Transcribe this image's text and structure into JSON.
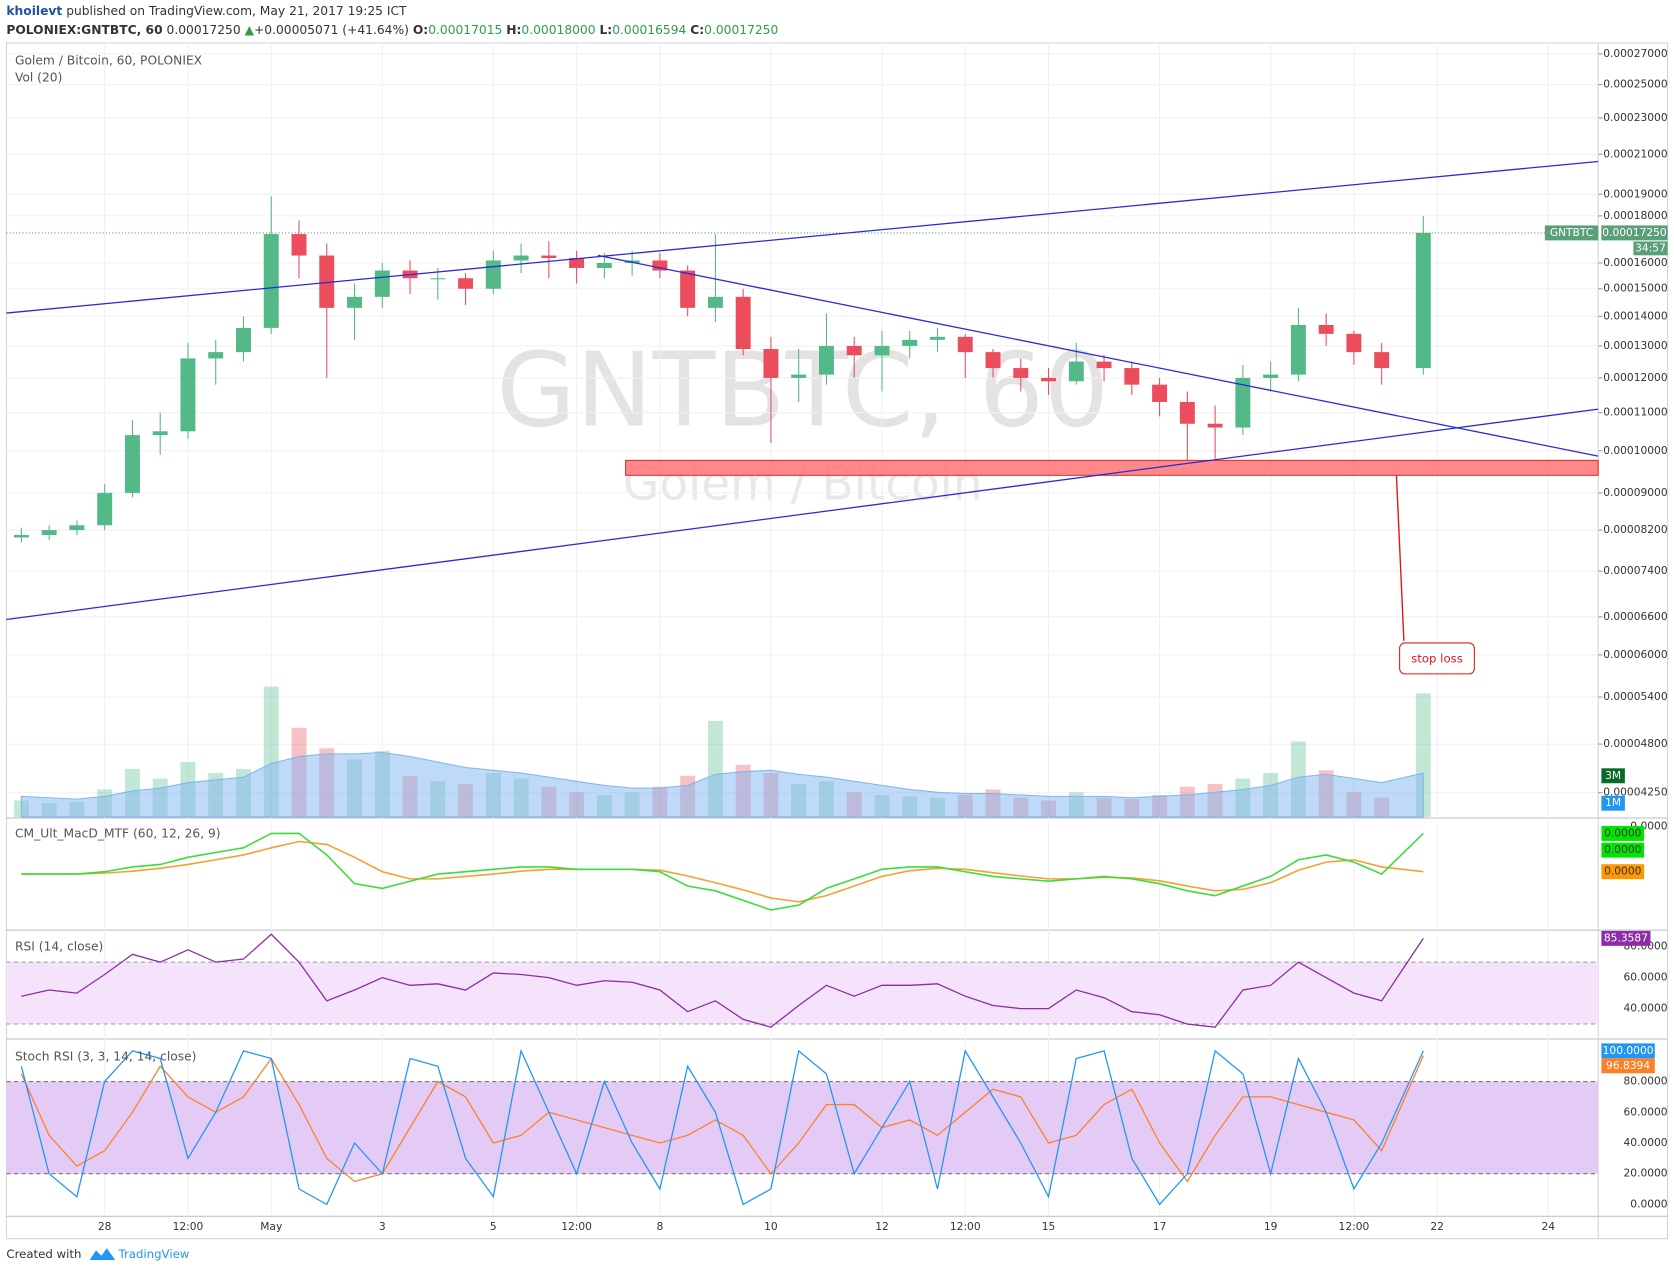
{
  "header": {
    "author": "khoilevt",
    "published": "published on TradingView.com, May 21, 2017 19:25 ICT",
    "symbol": "POLONIEX:GNTBTC, 60",
    "last": "0.00017250",
    "arrow": "▲",
    "change": "+0.00005071 (+41.64%)",
    "o_label": "O:",
    "o": "0.00017015",
    "h_label": "H:",
    "h": "0.00018000",
    "l_label": "L:",
    "l": "0.00016594",
    "c_label": "C:",
    "c": "0.00017250"
  },
  "footer": {
    "created": "Created with",
    "brand": "TradingView"
  },
  "chart_data": [
    {
      "type": "candlestick",
      "title": "Golem / Bitcoin, 60, POLONIEX",
      "watermark": "GNTBTC, 60",
      "watermark_sub": "Golem / Bitcoin",
      "annotation": "stop loss",
      "up_color": "#53b987",
      "down_color": "#eb4d5c",
      "log_scale": true,
      "grid": true,
      "x": [
        -1.5,
        -1,
        -0.5,
        0,
        0.5,
        1,
        1.5,
        2,
        2.5,
        3,
        3.5,
        4,
        4.5,
        5,
        5.5,
        6,
        6.5,
        7,
        7.5,
        8,
        8.5,
        9,
        9.5,
        10,
        10.5,
        11,
        11.5,
        12,
        12.5,
        13,
        13.5,
        14,
        14.5,
        15,
        15.5,
        16,
        16.5,
        17,
        17.5,
        18,
        18.5,
        19,
        19.5,
        20,
        20.5,
        21,
        21.5,
        22,
        22.5,
        23,
        23.75
      ],
      "open": [
        8.05e-05,
        8.1e-05,
        8.2e-05,
        8.3e-05,
        9e-05,
        0.000104,
        0.000105,
        0.000126,
        0.000128,
        0.000136,
        0.000172,
        0.000163,
        0.000143,
        0.000147,
        0.000157,
        0.000154,
        0.000154,
        0.00015,
        0.000161,
        0.000163,
        0.000162,
        0.000158,
        0.00016,
        0.000161,
        0.000157,
        0.000143,
        0.000147,
        0.000129,
        0.00012,
        0.000121,
        0.00013,
        0.000127,
        0.00013,
        0.000132,
        0.000133,
        0.000128,
        0.000123,
        0.00012,
        0.000119,
        0.000125,
        0.000123,
        0.000118,
        0.000113,
        0.000107,
        0.000106,
        0.00012,
        0.000121,
        0.000137,
        0.000134,
        0.000128,
        0.000123
      ],
      "high": [
        8.25e-05,
        8.3e-05,
        8.4e-05,
        9.2e-05,
        0.000108,
        0.00011,
        0.000131,
        0.000132,
        0.00014,
        0.000189,
        0.000178,
        0.000168,
        0.000152,
        0.00016,
        0.000161,
        0.000158,
        0.000156,
        0.000165,
        0.000168,
        0.000169,
        0.000165,
        0.000164,
        0.000165,
        0.000164,
        0.000159,
        0.000172,
        0.00015,
        0.000133,
        0.000129,
        0.000141,
        0.000133,
        0.000135,
        0.000135,
        0.000136,
        0.000134,
        0.000129,
        0.000126,
        0.000123,
        0.000131,
        0.000127,
        0.000125,
        0.00012,
        0.000116,
        0.000112,
        0.000124,
        0.000125,
        0.000143,
        0.000141,
        0.000135,
        0.000131,
        0.00018
      ],
      "low": [
        7.95e-05,
        8e-05,
        8.1e-05,
        8.2e-05,
        8.9e-05,
        9.9e-05,
        0.000103,
        0.000118,
        0.000125,
        0.000134,
        0.000154,
        0.00012,
        0.000132,
        0.000143,
        0.000148,
        0.000146,
        0.000144,
        0.000148,
        0.000156,
        0.000154,
        0.000152,
        0.000154,
        0.000155,
        0.000154,
        0.00014,
        0.000138,
        0.000127,
        0.000102,
        0.000113,
        0.000118,
        0.00012,
        0.000116,
        0.000126,
        0.000128,
        0.00012,
        0.00012,
        0.000116,
        0.000115,
        0.000118,
        0.000119,
        0.000115,
        0.000109,
        9.75e-05,
        9.8e-05,
        0.000104,
        0.000116,
        0.000119,
        0.00013,
        0.000124,
        0.000118,
        0.000121
      ],
      "close": [
        8.1e-05,
        8.2e-05,
        8.3e-05,
        9e-05,
        0.000104,
        0.000105,
        0.000126,
        0.000128,
        0.000136,
        0.000172,
        0.000163,
        0.000143,
        0.000147,
        0.000157,
        0.000154,
        0.000154,
        0.00015,
        0.000161,
        0.000163,
        0.000162,
        0.000158,
        0.00016,
        0.000161,
        0.000157,
        0.000143,
        0.000147,
        0.000129,
        0.00012,
        0.000121,
        0.00013,
        0.000127,
        0.00013,
        0.000132,
        0.000133,
        0.000128,
        0.000123,
        0.00012,
        0.000119,
        0.000125,
        0.000123,
        0.000118,
        0.000113,
        0.000107,
        0.000106,
        0.00012,
        0.000121,
        0.000137,
        0.000134,
        0.000128,
        0.000123,
        0.0001725
      ],
      "ylim": [
        4e-05,
        0.000276
      ],
      "yticks": [
        {
          "value": 0.00027,
          "label": "0.00027000"
        },
        {
          "value": 0.00025,
          "label": "0.00025000"
        },
        {
          "value": 0.00023,
          "label": "0.00023000"
        },
        {
          "value": 0.00021,
          "label": "0.00021000"
        },
        {
          "value": 0.00019,
          "label": "0.00019000"
        },
        {
          "value": 0.00018,
          "label": "0.00018000"
        },
        {
          "value": 0.00016,
          "label": "0.00016000"
        },
        {
          "value": 0.00015,
          "label": "0.00015000"
        },
        {
          "value": 0.00014,
          "label": "0.00014000"
        },
        {
          "value": 0.00013,
          "label": "0.00013000"
        },
        {
          "value": 0.00012,
          "label": "0.00012000"
        },
        {
          "value": 0.00011,
          "label": "0.00011000"
        },
        {
          "value": 0.0001,
          "label": "0.00010000"
        },
        {
          "value": 9e-05,
          "label": "0.00009000"
        },
        {
          "value": 8.2e-05,
          "label": "0.00008200"
        },
        {
          "value": 7.4e-05,
          "label": "0.00007400"
        },
        {
          "value": 6.6e-05,
          "label": "0.00006600"
        },
        {
          "value": 6e-05,
          "label": "0.00006000"
        },
        {
          "value": 5.4e-05,
          "label": "0.00005400"
        },
        {
          "value": 4.8e-05,
          "label": "0.00004800"
        },
        {
          "value": 4.25e-05,
          "label": "0.00004250"
        }
      ],
      "xlim": [
        -1.77,
        26.9
      ],
      "xticks": [
        {
          "value": 0,
          "label": "28"
        },
        {
          "value": 1.5,
          "label": "12:00"
        },
        {
          "value": 3,
          "label": "May"
        },
        {
          "value": 5,
          "label": "3"
        },
        {
          "value": 7,
          "label": "5"
        },
        {
          "value": 8.5,
          "label": "12:00"
        },
        {
          "value": 10,
          "label": "8"
        },
        {
          "value": 12,
          "label": "10"
        },
        {
          "value": 14,
          "label": "12"
        },
        {
          "value": 15.5,
          "label": "12:00"
        },
        {
          "value": 17,
          "label": "15"
        },
        {
          "value": 19,
          "label": "17"
        },
        {
          "value": 21,
          "label": "19"
        },
        {
          "value": 22.5,
          "label": "12:00"
        },
        {
          "value": 24,
          "label": "22"
        },
        {
          "value": 26,
          "label": "24"
        }
      ],
      "last_price": {
        "symbol": "GNTBTC",
        "label": "0.00017250",
        "timer": "34:57",
        "color": "#5a9e7a"
      },
      "volume": {
        "title": "Vol (20)",
        "ylim": [
          0,
          14000000
        ],
        "ma_color": "#7fb6f2",
        "values": [
          1200000,
          1000000,
          1100000,
          2000000,
          3500000,
          2800000,
          4000000,
          3200000,
          3500000,
          9500000,
          6500000,
          5000000,
          4200000,
          4800000,
          3000000,
          2600000,
          2400000,
          3200000,
          2800000,
          2200000,
          1800000,
          1600000,
          1800000,
          2200000,
          3000000,
          7000000,
          3800000,
          3200000,
          2400000,
          2600000,
          1800000,
          1600000,
          1500000,
          1400000,
          1600000,
          2000000,
          1400000,
          1200000,
          1800000,
          1400000,
          1300000,
          1600000,
          2200000,
          2400000,
          2800000,
          3200000,
          5500000,
          3400000,
          1800000,
          1400000,
          9000000
        ],
        "ma": [
          1500000,
          1400000,
          1300000,
          1500000,
          1900000,
          2100000,
          2500000,
          2700000,
          2900000,
          3900000,
          4400000,
          4600000,
          4600000,
          4700000,
          4400000,
          4000000,
          3600000,
          3400000,
          3200000,
          2900000,
          2600000,
          2300000,
          2100000,
          2100000,
          2300000,
          3100000,
          3300000,
          3400000,
          3100000,
          2900000,
          2600000,
          2300000,
          2000000,
          1800000,
          1700000,
          1700000,
          1600000,
          1500000,
          1500000,
          1500000,
          1400000,
          1500000,
          1600000,
          1800000,
          2000000,
          2300000,
          2900000,
          3100000,
          2800000,
          2500000,
          3200000
        ],
        "badges": [
          {
            "value": 3000000,
            "label": "3M",
            "color": "#0a6a2a"
          },
          {
            "value": 1000000,
            "label": "1M",
            "color": "#2196f3"
          }
        ]
      }
    },
    {
      "type": "macd",
      "title": "CM_Ult_MacD_MTF (60, 12, 26, 9)",
      "ylim": [
        -1.15e-05,
        1.15e-05
      ],
      "yticks": [
        {
          "value": 1e-05,
          "label": "0.0000"
        }
      ],
      "macd": {
        "color": "#3ddc3d",
        "values": [
          0,
          0,
          0,
          5e-07,
          1.5e-06,
          2e-06,
          3.5e-06,
          4.5e-06,
          5.5e-06,
          8.5e-06,
          8.5e-06,
          4e-06,
          -2e-06,
          -3e-06,
          -1.5e-06,
          0,
          5e-07,
          1e-06,
          1.5e-06,
          1.5e-06,
          1e-06,
          1e-06,
          1e-06,
          5e-07,
          -2.5e-06,
          -3.5e-06,
          -5.5e-06,
          -7.5e-06,
          -6.5e-06,
          -3e-06,
          -1e-06,
          1e-06,
          1.5e-06,
          1.5e-06,
          5e-07,
          -5e-07,
          -1e-06,
          -1.5e-06,
          -1e-06,
          -5e-07,
          -1e-06,
          -2e-06,
          -3.5e-06,
          -4.5e-06,
          -2.5e-06,
          -5e-07,
          3e-06,
          4e-06,
          2.5e-06,
          0,
          8.5e-06
        ]
      },
      "signal": {
        "color": "#f5a033",
        "values": [
          0,
          0,
          0,
          2e-07,
          6e-07,
          1.2e-06,
          2e-06,
          3e-06,
          4e-06,
          5.5e-06,
          6.8e-06,
          6.2e-06,
          3.5e-06,
          5e-07,
          -1e-06,
          -1e-06,
          -5e-07,
          0,
          6e-07,
          1e-06,
          1e-06,
          1e-06,
          1e-06,
          8e-07,
          -4e-07,
          -1.8e-06,
          -3.3e-06,
          -5e-06,
          -5.8e-06,
          -4.5e-06,
          -2.5e-06,
          -5e-07,
          7e-07,
          1.2e-06,
          1e-06,
          3e-07,
          -4e-07,
          -1e-06,
          -1e-06,
          -7e-07,
          -8e-07,
          -1.4e-06,
          -2.5e-06,
          -3.5e-06,
          -3.2e-06,
          -1.8e-06,
          8e-07,
          2.5e-06,
          3e-06,
          1.5e-06,
          5e-07
        ]
      },
      "badges": [
        {
          "value": 8.5e-06,
          "label": "0.0000",
          "color": "#00e600"
        },
        {
          "value": 5e-06,
          "label": "0.0000",
          "color": "#00e600"
        },
        {
          "value": 5e-07,
          "label": "0.0000",
          "color": "#ff9800"
        }
      ]
    },
    {
      "type": "rsi",
      "title": "RSI (14, close)",
      "ylim": [
        21,
        90
      ],
      "band": [
        30,
        70
      ],
      "color": "#8e2ba8",
      "band_color": "#f4e3fa",
      "yticks": [
        {
          "value": 80,
          "label": "80.0000"
        },
        {
          "value": 60,
          "label": "60.0000"
        },
        {
          "value": 40,
          "label": "40.0000"
        }
      ],
      "values": [
        48,
        52,
        50,
        62,
        75,
        70,
        78,
        70,
        72,
        88,
        70,
        45,
        52,
        60,
        55,
        56,
        52,
        63,
        62,
        60,
        55,
        58,
        57,
        52,
        38,
        45,
        33,
        28,
        42,
        55,
        48,
        55,
        55,
        56,
        48,
        42,
        40,
        40,
        52,
        47,
        38,
        36,
        30,
        28,
        52,
        55,
        70,
        60,
        50,
        45,
        85.3587
      ]
    },
    {
      "type": "stoch",
      "title": "Stoch RSI (3, 3, 14, 14, close)",
      "ylim": [
        -7,
        107
      ],
      "band": [
        20,
        80
      ],
      "band_color": "#e4cbf6",
      "yticks": [
        {
          "value": 80,
          "label": "80.0000"
        },
        {
          "value": 60,
          "label": "60.0000"
        },
        {
          "value": 40,
          "label": "40.0000"
        },
        {
          "value": 20,
          "label": "20.0000"
        },
        {
          "value": 0,
          "label": "0.0000"
        }
      ],
      "k": {
        "color": "#2196f3",
        "last_label": "100.0000",
        "values": [
          90,
          20,
          5,
          80,
          100,
          95,
          30,
          60,
          100,
          95,
          10,
          0,
          40,
          20,
          95,
          90,
          30,
          5,
          100,
          60,
          20,
          80,
          40,
          10,
          90,
          60,
          0,
          10,
          100,
          85,
          20,
          50,
          80,
          10,
          100,
          70,
          40,
          5,
          95,
          100,
          30,
          0,
          20,
          100,
          85,
          20,
          95,
          60,
          10,
          40,
          100
        ]
      },
      "d": {
        "color": "#ff7f27",
        "values": [
          85,
          45,
          25,
          35,
          60,
          90,
          70,
          60,
          70,
          95,
          65,
          30,
          15,
          20,
          50,
          80,
          70,
          40,
          45,
          60,
          55,
          50,
          45,
          40,
          45,
          55,
          45,
          20,
          40,
          65,
          65,
          50,
          55,
          45,
          60,
          75,
          70,
          40,
          45,
          65,
          75,
          40,
          15,
          45,
          70,
          70,
          65,
          60,
          55,
          35,
          96.8394
        ]
      }
    }
  ]
}
